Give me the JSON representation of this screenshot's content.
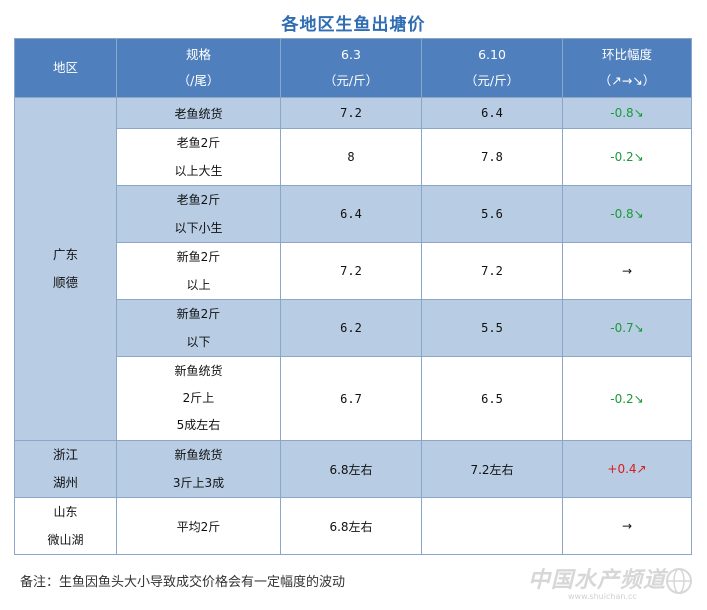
{
  "title": "各地区生鱼出塘价",
  "header": {
    "region": "地区",
    "spec_line1": "规格",
    "spec_line2": "（/尾）",
    "date1_line1": "6.3",
    "date1_line2": "（元/斤）",
    "date2_line1": "6.10",
    "date2_line2": "（元/斤）",
    "change_line1": "环比幅度",
    "change_line2": "（↗→↘）"
  },
  "regions": [
    {
      "name_line1": "广东",
      "name_line2": "顺德",
      "rows": [
        {
          "spec": [
            "老鱼统货"
          ],
          "p1": "7.2",
          "p2": "6.4",
          "change": "-0.8↘"
        },
        {
          "spec": [
            "老鱼2斤",
            "以上大生"
          ],
          "p1": "8",
          "p2": "7.8",
          "change": "-0.2↘"
        },
        {
          "spec": [
            "老鱼2斤",
            "以下小生"
          ],
          "p1": "6.4",
          "p2": "5.6",
          "change": "-0.8↘"
        },
        {
          "spec": [
            "新鱼2斤",
            "以上"
          ],
          "p1": "7.2",
          "p2": "7.2",
          "change": "→"
        },
        {
          "spec": [
            "新鱼2斤",
            "以下"
          ],
          "p1": "6.2",
          "p2": "5.5",
          "change": "-0.7↘"
        },
        {
          "spec": [
            "新鱼统货",
            "2斤上",
            "5成左右"
          ],
          "p1": "6.7",
          "p2": "6.5",
          "change": "-0.2↘"
        }
      ]
    },
    {
      "name_line1": "浙江",
      "name_line2": "湖州",
      "rows": [
        {
          "spec": [
            "新鱼统货",
            "3斤上3成"
          ],
          "p1": "6.8左右",
          "p2": "7.2左右",
          "change": "+0.4↗"
        }
      ]
    },
    {
      "name_line1": "山东",
      "name_line2": "微山湖",
      "rows": [
        {
          "spec": [
            "平均2斤"
          ],
          "p1": "6.8左右",
          "p2": "",
          "change": "→"
        }
      ]
    }
  ],
  "note": "备注：生鱼因鱼头大小导致成交价格会有一定幅度的波动",
  "watermark": {
    "text": "中国水产频道",
    "url": "www.shuichan.cc"
  },
  "colors": {
    "header": "#4f7fbc",
    "band": "#b8cce4",
    "title": "#2f6db3",
    "down": "#1a9a3a",
    "up": "#d81b1b"
  }
}
